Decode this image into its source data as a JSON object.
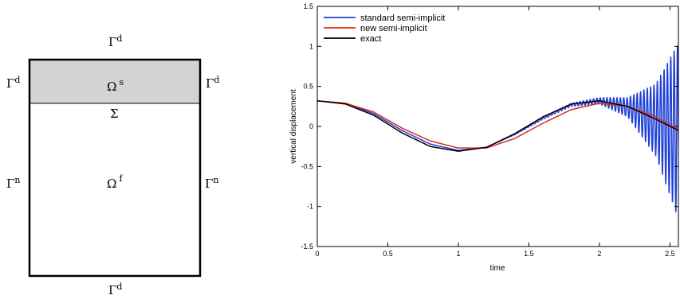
{
  "domain_diagram": {
    "top_boundary": {
      "base": "Γ",
      "sup": "d"
    },
    "left_solid_boundary": {
      "base": "Γ",
      "sup": "d"
    },
    "right_solid_boundary": {
      "base": "Γ",
      "sup": "d"
    },
    "solid_region": {
      "base": "Ω",
      "sup": "s"
    },
    "interface": {
      "base": "Σ"
    },
    "left_fluid_boundary": {
      "base": "Γ",
      "sup": "n"
    },
    "right_fluid_boundary": {
      "base": "Γ",
      "sup": "n"
    },
    "fluid_region": {
      "base": "Ω",
      "sup": "f"
    },
    "bottom_boundary": {
      "base": "Γ",
      "sup": "d"
    },
    "solid_fill_color": "#d3d3d3"
  },
  "chart_data": {
    "type": "line",
    "xlabel": "time",
    "ylabel": "vertical displacement",
    "xlim": [
      0,
      2.56
    ],
    "ylim": [
      -1.5,
      1.5
    ],
    "xticks": [
      0,
      0.5,
      1,
      1.5,
      2,
      2.5
    ],
    "xtick_labels": [
      "0",
      "0.5",
      "1",
      "1.5",
      "2",
      "2.5"
    ],
    "yticks": [
      -1.5,
      -1,
      -0.5,
      0,
      0.5,
      1,
      1.5
    ],
    "ytick_labels": [
      "-1.5",
      "-1",
      "-0.5",
      "0",
      "0.5",
      "1",
      "1.5"
    ],
    "grid": false,
    "legend_position": "top-left",
    "series": [
      {
        "name": "standard semi-implicit",
        "color": "#1f3fd8",
        "x": [
          0,
          0.2,
          0.4,
          0.6,
          0.8,
          1.0,
          1.2,
          1.4,
          1.6,
          1.8,
          2.0,
          2.2,
          2.4,
          2.56
        ],
        "y": [
          0.32,
          0.29,
          0.16,
          -0.05,
          -0.22,
          -0.3,
          -0.26,
          -0.1,
          0.1,
          0.27,
          0.32,
          0.24,
          0.08,
          -0.06
        ],
        "oscillation": {
          "start_x": 1.3,
          "envelope": [
            [
              1.3,
              0.0
            ],
            [
              1.6,
              0.01
            ],
            [
              1.8,
              0.02
            ],
            [
              2.0,
              0.04
            ],
            [
              2.2,
              0.12
            ],
            [
              2.4,
              0.45
            ],
            [
              2.56,
              1.1
            ]
          ],
          "frequency": 42
        }
      },
      {
        "name": "new semi-implicit",
        "color": "#e0281e",
        "x": [
          0,
          0.2,
          0.4,
          0.6,
          0.8,
          1.0,
          1.2,
          1.4,
          1.6,
          1.8,
          2.0,
          2.2,
          2.4,
          2.56
        ],
        "y": [
          0.32,
          0.29,
          0.18,
          -0.02,
          -0.18,
          -0.27,
          -0.27,
          -0.15,
          0.04,
          0.21,
          0.29,
          0.25,
          0.12,
          -0.04
        ],
        "oscillation": null
      },
      {
        "name": "exact",
        "color": "#000000",
        "x": [
          0,
          0.2,
          0.4,
          0.6,
          0.8,
          1.0,
          1.2,
          1.4,
          1.6,
          1.8,
          2.0,
          2.2,
          2.4,
          2.56
        ],
        "y": [
          0.32,
          0.28,
          0.14,
          -0.08,
          -0.25,
          -0.31,
          -0.26,
          -0.09,
          0.12,
          0.28,
          0.32,
          0.25,
          0.09,
          -0.05
        ],
        "oscillation": null
      }
    ]
  }
}
